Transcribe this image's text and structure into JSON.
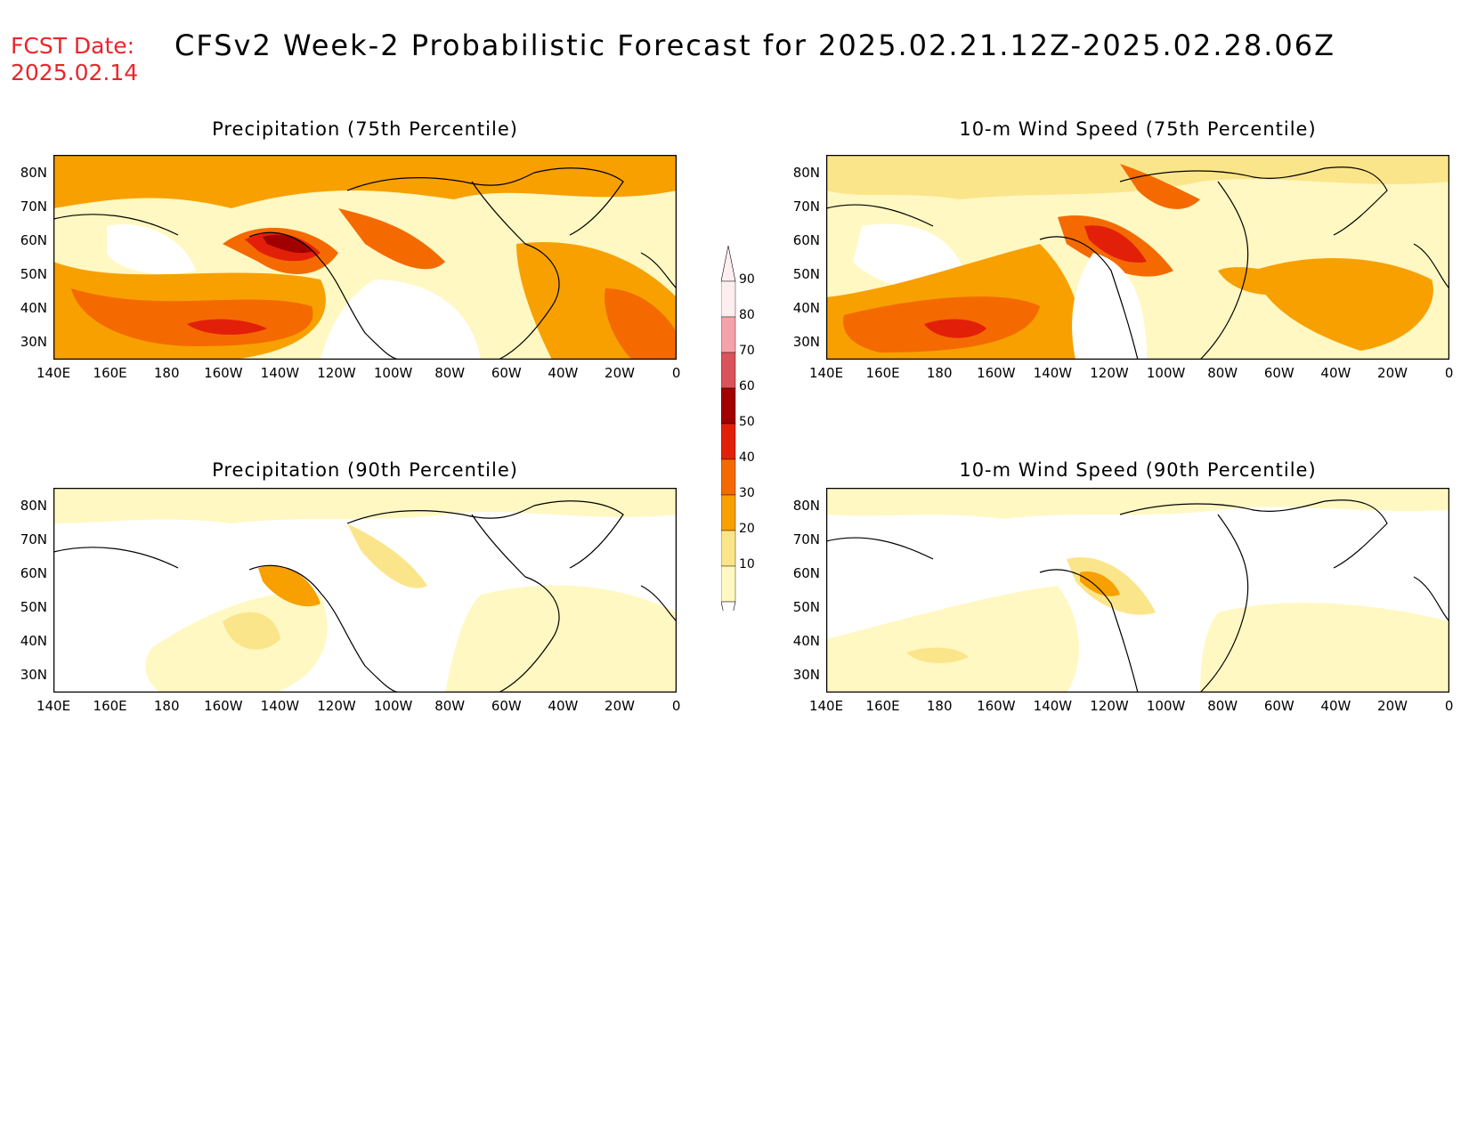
{
  "header": {
    "fcst_label": "FCST Date:",
    "fcst_date": "2025.02.14",
    "title": "CFSv2 Week-2 Probabilistic Forecast for 2025.02.21.12Z-2025.02.28.06Z"
  },
  "axes": {
    "lat_labels": [
      "80N",
      "70N",
      "60N",
      "50N",
      "40N",
      "30N"
    ],
    "lon_labels": [
      "140E",
      "160E",
      "180",
      "160W",
      "140W",
      "120W",
      "100W",
      "80W",
      "60W",
      "40W",
      "20W",
      "0"
    ]
  },
  "panels": [
    {
      "id": "precip-75",
      "title": "Precipitation (75th Percentile)"
    },
    {
      "id": "wind-75",
      "title": "10-m Wind Speed (75th Percentile)"
    },
    {
      "id": "precip-90",
      "title": "Precipitation (90th Percentile)"
    },
    {
      "id": "wind-90",
      "title": "10-m Wind Speed (90th Percentile)"
    }
  ],
  "colorbar": {
    "labels": [
      "90",
      "80",
      "70",
      "60",
      "50",
      "40",
      "30",
      "20",
      "10"
    ],
    "colors": [
      "#ffeef0",
      "#f4a3ab",
      "#d9535a",
      "#a00000",
      "#e2200a",
      "#f46a00",
      "#f7a000",
      "#fbe58a",
      "#fff8c2"
    ]
  }
}
